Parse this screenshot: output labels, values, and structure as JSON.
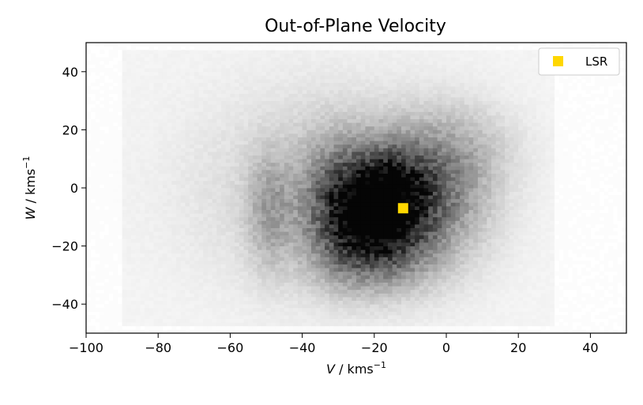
{
  "chart_data": {
    "type": "heatmap",
    "title": "Out-of-Plane Velocity",
    "xlabel": {
      "var": "V",
      "unit": " / kms",
      "exp": "−1"
    },
    "ylabel": {
      "var": "W",
      "unit": " / kms",
      "exp": "−1"
    },
    "xlim": [
      -100,
      50
    ],
    "ylim": [
      -50,
      50
    ],
    "xticks": [
      -100,
      -80,
      -60,
      -40,
      -20,
      0,
      20,
      40
    ],
    "yticks": [
      -40,
      -20,
      0,
      20,
      40
    ],
    "xtick_labels": [
      "−100",
      "−80",
      "−60",
      "−40",
      "−20",
      "0",
      "20",
      "40"
    ],
    "ytick_labels": [
      "−40",
      "−20",
      "0",
      "20",
      "40"
    ],
    "colormap": "Greys",
    "density_peak": {
      "V": -19,
      "W": -8
    },
    "data_extent": {
      "V": [
        -90,
        30
      ],
      "W": [
        -48,
        48
      ]
    },
    "markers": [
      {
        "name": "LSR",
        "V": -12,
        "W": -7,
        "color": "#FFD700",
        "shape": "square"
      }
    ],
    "legend": {
      "position": "top-right",
      "entries": [
        "LSR"
      ]
    },
    "grid": false
  }
}
